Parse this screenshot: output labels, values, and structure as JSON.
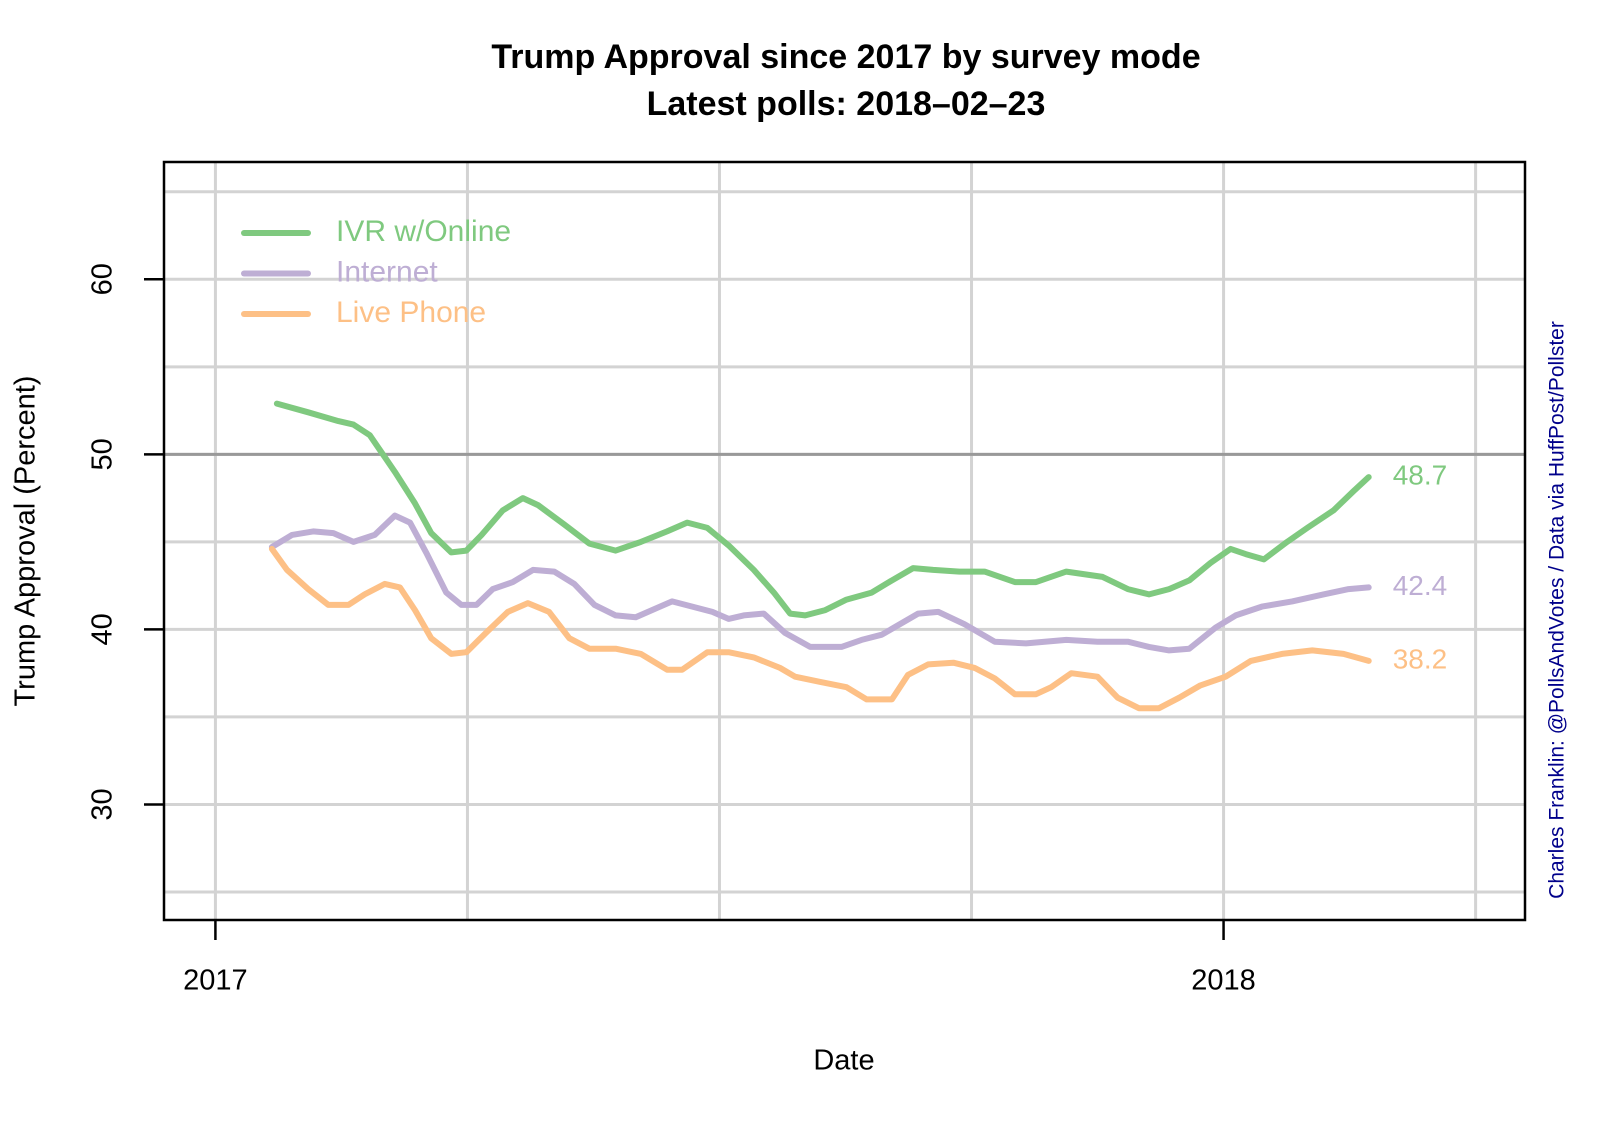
{
  "chart_data": {
    "type": "line",
    "title": "Trump Approval since 2017 by survey mode",
    "subtitle": "Latest polls: 2018–02–23",
    "xlabel": "Date",
    "ylabel": "Trump Approval (Percent)",
    "caption": "Charles Franklin: @PollsAndVotes / Data via HuffPost/Pollster",
    "xlim": [
      2016.949,
      2018.299
    ],
    "ylim": [
      23.4,
      66.7
    ],
    "xticks": [
      2017,
      2018
    ],
    "yticks": [
      30,
      40,
      50,
      60
    ],
    "xgrid": [
      2017,
      2017.25,
      2017.5,
      2017.75,
      2018,
      2018.25
    ],
    "ygrid": [
      25,
      30,
      35,
      40,
      45,
      50,
      55,
      60,
      65
    ],
    "grid": true,
    "hline": 50,
    "legend": "topleft",
    "series": [
      {
        "name": "IVR w/Online",
        "color": "#7fc97f",
        "x": [
          2017.061,
          2017.092,
          2017.122,
          2017.137,
          2017.153,
          2017.178,
          2017.198,
          2017.214,
          2017.234,
          2017.249,
          2017.264,
          2017.285,
          2017.305,
          2017.32,
          2017.346,
          2017.371,
          2017.397,
          2017.422,
          2017.448,
          2017.468,
          2017.488,
          2017.509,
          2017.534,
          2017.554,
          2017.57,
          2017.585,
          2017.605,
          2017.626,
          2017.651,
          2017.671,
          2017.692,
          2017.712,
          2017.738,
          2017.763,
          2017.793,
          2017.814,
          2017.844,
          2017.88,
          2017.905,
          2017.926,
          2017.946,
          2017.966,
          2017.987,
          2018.007,
          2018.022,
          2018.04,
          2018.063,
          2018.083,
          2018.109,
          2018.129,
          2018.144
        ],
        "values": [
          52.9,
          52.4,
          51.9,
          51.7,
          51.1,
          49.0,
          47.2,
          45.5,
          44.4,
          44.5,
          45.4,
          46.8,
          47.5,
          47.1,
          46.0,
          44.9,
          44.5,
          45.0,
          45.6,
          46.1,
          45.8,
          44.8,
          43.4,
          42.1,
          40.9,
          40.8,
          41.1,
          41.7,
          42.1,
          42.8,
          43.5,
          43.4,
          43.3,
          43.3,
          42.7,
          42.7,
          43.3,
          43.0,
          42.3,
          42.0,
          42.3,
          42.8,
          43.8,
          44.6,
          44.3,
          44.0,
          45.0,
          45.8,
          46.8,
          47.9,
          48.7
        ]
      },
      {
        "name": "Internet",
        "color": "#beaed4",
        "x": [
          2017.056,
          2017.076,
          2017.097,
          2017.117,
          2017.137,
          2017.158,
          2017.178,
          2017.193,
          2017.209,
          2017.229,
          2017.244,
          2017.259,
          2017.275,
          2017.295,
          2017.315,
          2017.336,
          2017.356,
          2017.376,
          2017.397,
          2017.417,
          2017.437,
          2017.453,
          2017.473,
          2017.493,
          2017.509,
          2017.524,
          2017.544,
          2017.565,
          2017.59,
          2017.621,
          2017.641,
          2017.661,
          2017.682,
          2017.697,
          2017.717,
          2017.743,
          2017.773,
          2017.804,
          2017.844,
          2017.875,
          2017.905,
          2017.926,
          2017.946,
          2017.966,
          2017.992,
          2018.012,
          2018.038,
          2018.068,
          2018.099,
          2018.124,
          2018.144
        ],
        "values": [
          44.7,
          45.4,
          45.6,
          45.5,
          45.0,
          45.4,
          46.5,
          46.1,
          44.4,
          42.1,
          41.4,
          41.4,
          42.3,
          42.7,
          43.4,
          43.3,
          42.6,
          41.4,
          40.8,
          40.7,
          41.2,
          41.6,
          41.3,
          41.0,
          40.6,
          40.8,
          40.9,
          39.8,
          39.0,
          39.0,
          39.4,
          39.7,
          40.4,
          40.9,
          41.0,
          40.3,
          39.3,
          39.2,
          39.4,
          39.3,
          39.3,
          39.0,
          38.8,
          38.9,
          40.1,
          40.8,
          41.3,
          41.6,
          42.0,
          42.3,
          42.4
        ]
      },
      {
        "name": "Live Phone",
        "color": "#fdc086",
        "x": [
          2017.056,
          2017.071,
          2017.092,
          2017.112,
          2017.132,
          2017.148,
          2017.168,
          2017.183,
          2017.198,
          2017.214,
          2017.234,
          2017.249,
          2017.27,
          2017.29,
          2017.31,
          2017.331,
          2017.351,
          2017.371,
          2017.397,
          2017.422,
          2017.448,
          2017.463,
          2017.488,
          2017.509,
          2017.534,
          2017.56,
          2017.575,
          2017.6,
          2017.626,
          2017.646,
          2017.671,
          2017.687,
          2017.707,
          2017.732,
          2017.753,
          2017.773,
          2017.793,
          2017.814,
          2017.829,
          2017.849,
          2017.875,
          2017.895,
          2017.916,
          2017.936,
          2017.956,
          2017.977,
          2018.002,
          2018.027,
          2018.058,
          2018.088,
          2018.119,
          2018.144
        ],
        "values": [
          44.6,
          43.4,
          42.3,
          41.4,
          41.4,
          42.0,
          42.6,
          42.4,
          41.1,
          39.5,
          38.6,
          38.7,
          39.9,
          41.0,
          41.5,
          41.0,
          39.5,
          38.9,
          38.9,
          38.6,
          37.7,
          37.7,
          38.7,
          38.7,
          38.4,
          37.8,
          37.3,
          37.0,
          36.7,
          36.0,
          36.0,
          37.4,
          38.0,
          38.1,
          37.8,
          37.2,
          36.3,
          36.3,
          36.7,
          37.5,
          37.3,
          36.1,
          35.5,
          35.5,
          36.1,
          36.8,
          37.3,
          38.2,
          38.6,
          38.8,
          38.6,
          38.2
        ]
      }
    ]
  }
}
